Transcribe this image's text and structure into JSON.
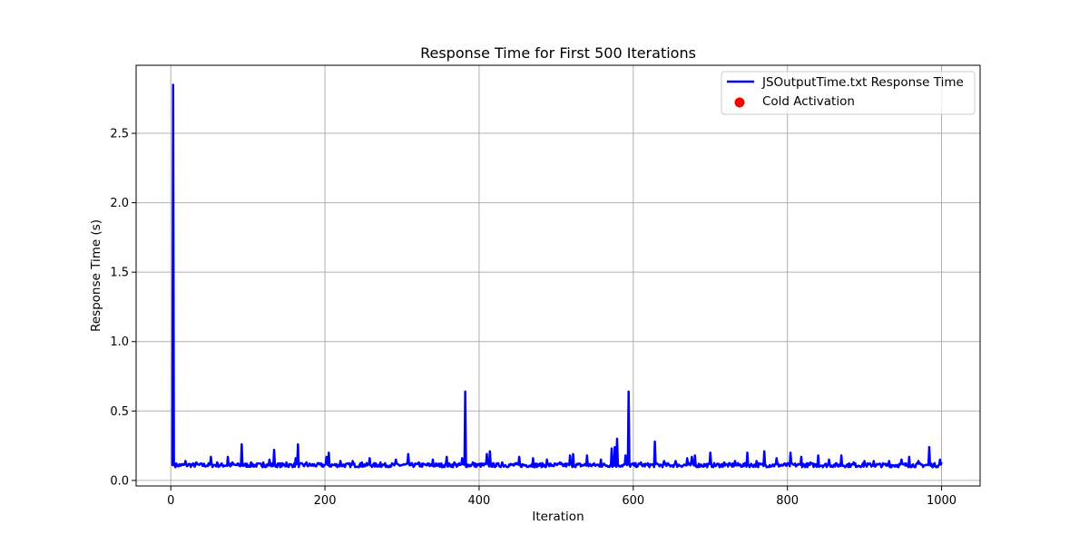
{
  "chart_data": {
    "type": "line",
    "title": "Response Time for First 500 Iterations",
    "xlabel": "Iteration",
    "ylabel": "Response Time (s)",
    "xlim": [
      -45,
      1050
    ],
    "ylim": [
      -0.04,
      2.99
    ],
    "xticks": [
      0,
      200,
      400,
      600,
      800,
      1000
    ],
    "xtick_labels": [
      "0",
      "200",
      "400",
      "600",
      "800",
      "1000"
    ],
    "yticks": [
      0.0,
      0.5,
      1.0,
      1.5,
      2.0,
      2.5
    ],
    "ytick_labels": [
      "0.0",
      "0.5",
      "1.0",
      "1.5",
      "2.0",
      "2.5"
    ],
    "grid": true,
    "legend_position": "top-right",
    "colors": {
      "line": "#0000ff",
      "marker": "#ff0000",
      "grid": "#b0b0b0",
      "axes": "#000000"
    },
    "baseline": 0.11,
    "series": [
      {
        "name": "JSOutputTime.txt Response Time",
        "type": "line",
        "x_range": [
          1,
          1000
        ],
        "x": [
          1,
          2,
          3,
          4,
          5,
          8,
          19,
          24,
          33,
          38,
          52,
          60,
          74,
          80,
          92,
          104,
          120,
          128,
          134,
          150,
          162,
          165,
          176,
          190,
          202,
          205,
          220,
          236,
          248,
          258,
          272,
          292,
          308,
          322,
          340,
          358,
          368,
          378,
          382,
          392,
          410,
          414,
          430,
          452,
          470,
          488,
          505,
          518,
          522,
          540,
          558,
          572,
          576,
          579,
          590,
          594,
          610,
          628,
          640,
          655,
          670,
          676,
          680,
          700,
          718,
          732,
          748,
          760,
          770,
          786,
          804,
          818,
          830,
          840,
          854,
          870,
          886,
          900,
          912,
          932,
          948,
          958,
          970,
          984,
          998,
          1000
        ],
        "y": [
          0.11,
          0.11,
          2.85,
          0.11,
          0.11,
          0.11,
          0.14,
          0.12,
          0.13,
          0.12,
          0.17,
          0.13,
          0.17,
          0.13,
          0.26,
          0.13,
          0.13,
          0.15,
          0.22,
          0.13,
          0.16,
          0.26,
          0.13,
          0.12,
          0.17,
          0.2,
          0.14,
          0.14,
          0.13,
          0.16,
          0.13,
          0.15,
          0.19,
          0.13,
          0.15,
          0.17,
          0.13,
          0.16,
          0.64,
          0.13,
          0.19,
          0.21,
          0.13,
          0.17,
          0.16,
          0.15,
          0.13,
          0.18,
          0.19,
          0.18,
          0.15,
          0.23,
          0.24,
          0.3,
          0.18,
          0.64,
          0.13,
          0.28,
          0.14,
          0.14,
          0.16,
          0.17,
          0.18,
          0.2,
          0.13,
          0.14,
          0.2,
          0.14,
          0.21,
          0.16,
          0.2,
          0.17,
          0.13,
          0.18,
          0.15,
          0.18,
          0.13,
          0.14,
          0.14,
          0.14,
          0.15,
          0.17,
          0.14,
          0.24,
          0.15,
          0.13
        ]
      },
      {
        "name": "Cold Activation",
        "type": "scatter",
        "x": [],
        "y": []
      }
    ]
  }
}
